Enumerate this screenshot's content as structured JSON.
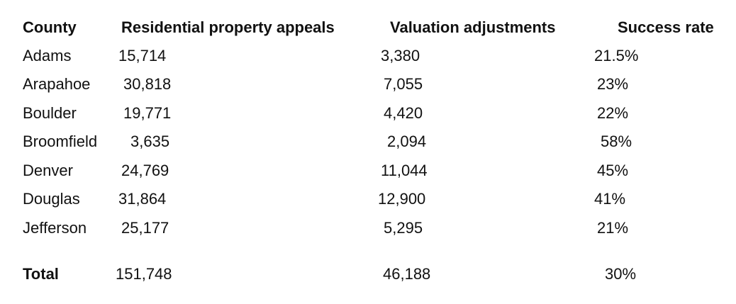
{
  "table": {
    "header": [
      "County",
      "Residential property appeals",
      "Valuation adjustments",
      "Success rate"
    ],
    "rows": [
      [
        "Adams",
        "15,714",
        "3,380",
        "21.5%"
      ],
      [
        "Arapahoe",
        "30,818",
        "7,055",
        "23%"
      ],
      [
        "Boulder",
        "19,771",
        "4,420",
        "22%"
      ],
      [
        "Broomfield",
        "3,635",
        "2,094",
        "58%"
      ],
      [
        "Denver",
        "24,769",
        "11,044",
        "45%"
      ],
      [
        "Douglas",
        "31,864",
        "12,900",
        "41%"
      ],
      [
        "Jefferson",
        "25,177",
        "5,295",
        "21%"
      ]
    ],
    "total": [
      "Total",
      "151,748",
      "46,188",
      "30%"
    ]
  }
}
